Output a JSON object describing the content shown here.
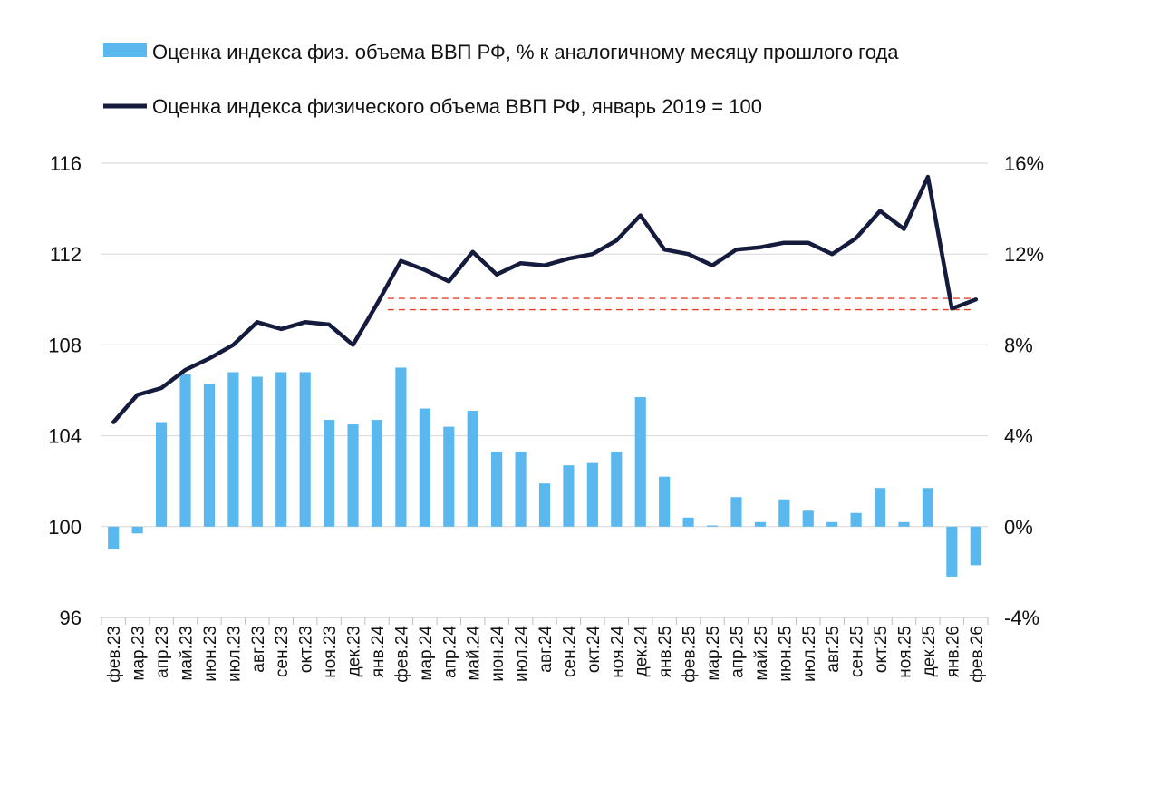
{
  "chart_data": {
    "type": "bar+line",
    "legend": [
      {
        "label": "Оценка индекса физ. объема ВВП РФ, % к аналогичному месяцу прошлого года",
        "kind": "bar",
        "color": "#5BB8EE"
      },
      {
        "label": "Оценка индекса физического объема ВВП РФ, январь 2019 = 100",
        "kind": "line",
        "color": "#141B3C"
      }
    ],
    "categories": [
      "фев.23",
      "мар.23",
      "апр.23",
      "май.23",
      "июн.23",
      "июл.23",
      "авг.23",
      "сен.23",
      "окт.23",
      "ноя.23",
      "дек.23",
      "янв.24",
      "фев.24",
      "мар.24",
      "апр.24",
      "май.24",
      "июн.24",
      "июл.24",
      "авг.24",
      "сен.24",
      "окт.24",
      "ноя.24",
      "дек.24",
      "янв.25",
      "фев.25",
      "мар.25",
      "апр.25",
      "май.25",
      "июн.25",
      "июл.25",
      "авг.25",
      "сен.25",
      "окт.25",
      "ноя.25",
      "дек.25",
      "янв.26",
      "фев.26"
    ],
    "left_axis": {
      "min": 96,
      "max": 116,
      "ticks": [
        96,
        100,
        104,
        108,
        112,
        116
      ],
      "tick_labels": [
        "96",
        "100",
        "104",
        "108",
        "112",
        "116"
      ]
    },
    "right_axis": {
      "min": -4,
      "max": 16,
      "ticks": [
        -4,
        0,
        4,
        8,
        12,
        16
      ],
      "tick_labels": [
        "-4%",
        "0%",
        "4%",
        "8%",
        "12%",
        "16%"
      ]
    },
    "series": [
      {
        "name": "Оценка индекса физ. объема ВВП РФ, % к аналогичному месяцу прошлого года",
        "type": "bar",
        "axis": "right",
        "color": "#5BB8EE",
        "values": [
          -1.0,
          -0.3,
          4.6,
          6.7,
          6.3,
          6.8,
          6.6,
          6.8,
          6.8,
          4.7,
          4.5,
          4.7,
          7.0,
          5.2,
          4.4,
          5.1,
          3.3,
          3.3,
          1.9,
          2.7,
          2.8,
          3.3,
          5.7,
          2.2,
          0.4,
          0.05,
          1.3,
          0.2,
          1.2,
          0.7,
          0.2,
          0.6,
          1.7,
          0.2,
          1.7,
          -2.2,
          -1.7
        ]
      },
      {
        "name": "Оценка индекса физического объема ВВП РФ, январь 2019 = 100",
        "type": "line",
        "axis": "left",
        "color": "#141B3C",
        "values": [
          104.6,
          105.8,
          106.1,
          106.9,
          107.4,
          108.0,
          109.0,
          108.7,
          109.0,
          108.9,
          108.0,
          109.8,
          111.7,
          111.3,
          110.8,
          112.1,
          111.1,
          111.6,
          111.5,
          111.8,
          112.0,
          112.6,
          113.7,
          112.2,
          112.0,
          111.5,
          112.2,
          112.3,
          112.5,
          112.5,
          112.0,
          112.7,
          113.9,
          113.1,
          115.4,
          109.6,
          110.0
        ]
      }
    ],
    "reference_lines": [
      {
        "value": 110.05,
        "axis": "left",
        "style": "dashed",
        "color": "#E0442C"
      },
      {
        "value": 109.55,
        "axis": "left",
        "style": "dashed",
        "color": "#E0442C"
      }
    ]
  }
}
